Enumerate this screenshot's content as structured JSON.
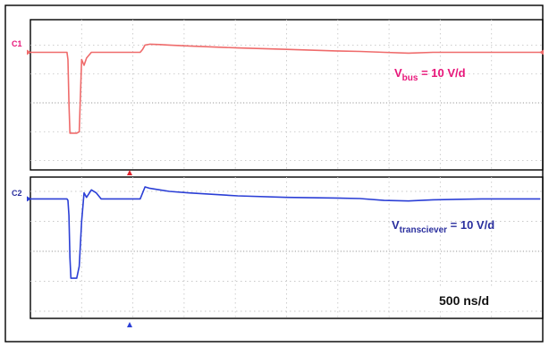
{
  "chart_data": {
    "type": "line",
    "title": "",
    "timebase": "500 ns/d",
    "x_unit": "ns",
    "trigger_time_ns": 0,
    "x": [
      -2250,
      -1550,
      -1500,
      -1480,
      -1460,
      -1440,
      -1420,
      -1300,
      -1250,
      -1200,
      -1150,
      -1100,
      -1000,
      -900,
      -800,
      -700,
      -600,
      -500,
      -200,
      0,
      50,
      100,
      200,
      400,
      600,
      1000,
      2000,
      3000,
      4000,
      4500,
      5000,
      5500,
      6000,
      7000,
      8000,
      8200
    ],
    "series": [
      {
        "name": "C1",
        "label_main": "V",
        "label_sub": "bus",
        "label_rest": " = 10 V/d",
        "color": "#ef6b6b",
        "label_color": "#e8167a",
        "scale": "10 V/d",
        "ylim_div": [
          -2.1,
          2.1
        ],
        "values_div": [
          1.75,
          1.75,
          1.75,
          1.5,
          0.0,
          -1.05,
          -1.05,
          -1.05,
          -1.0,
          1.5,
          1.3,
          1.55,
          1.75,
          1.75,
          1.75,
          1.75,
          1.75,
          1.75,
          1.75,
          1.75,
          1.85,
          2.0,
          2.03,
          2.02,
          2.0,
          1.97,
          1.9,
          1.85,
          1.8,
          1.78,
          1.75,
          1.72,
          1.75,
          1.75,
          1.75,
          1.75
        ]
      },
      {
        "name": "C2",
        "label_main": "V",
        "label_sub": "transciever",
        "label_rest": " = 10 V/d",
        "color": "#2b3fd6",
        "label_color": "#2a2f9e",
        "scale": "10 V/d",
        "ylim_div": [
          -2.1,
          2.1
        ],
        "values_div": [
          1.75,
          1.75,
          1.75,
          1.7,
          1.2,
          -0.2,
          -0.9,
          -0.9,
          -0.5,
          1.0,
          1.95,
          1.8,
          2.05,
          1.95,
          1.75,
          1.75,
          1.75,
          1.75,
          1.75,
          1.75,
          1.95,
          2.15,
          2.1,
          2.05,
          2.0,
          1.95,
          1.85,
          1.8,
          1.78,
          1.76,
          1.7,
          1.68,
          1.72,
          1.75,
          1.75,
          1.75
        ]
      }
    ],
    "xlim_ns": [
      -2250,
      8250
    ],
    "grid": true,
    "divisions_x": 10
  }
}
